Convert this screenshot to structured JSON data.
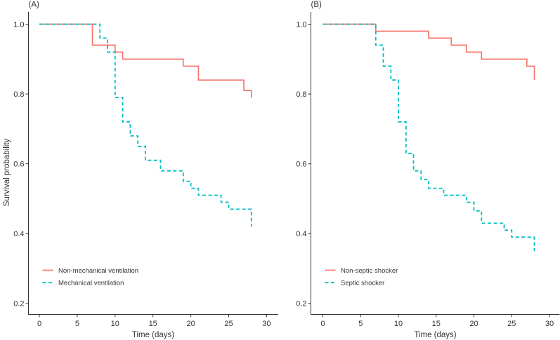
{
  "figure": {
    "ylabel": "Survival probability",
    "background": "#ffffff",
    "text_color": "#333333",
    "axis_color": "#333333"
  },
  "chart_data": [
    {
      "type": "line",
      "subtype": "kaplan-meier-step-curve",
      "panel_label": "(A)",
      "title": "",
      "xlabel": "Time (days)",
      "ylabel": "Survival probability",
      "xlim": [
        0,
        30
      ],
      "xticks": [
        0,
        5,
        10,
        15,
        20,
        25,
        30
      ],
      "ylim": [
        0.15,
        1.03
      ],
      "yticks": [
        "1.0",
        "0.8",
        "0.6",
        "0.4",
        "0.2"
      ],
      "grid": false,
      "legend_position": "bottom-left",
      "series": [
        {
          "name": "Non-mechanical ventilation",
          "color": "#F8766D",
          "line_style": "solid",
          "steps": [
            [
              0,
              1.0
            ],
            [
              7,
              0.94
            ],
            [
              10,
              0.92
            ],
            [
              11,
              0.9
            ],
            [
              19,
              0.88
            ],
            [
              21,
              0.84
            ],
            [
              27,
              0.81
            ],
            [
              28,
              0.79
            ]
          ]
        },
        {
          "name": "Mechanical ventilation",
          "color": "#00BFC4",
          "line_style": "dashed",
          "steps": [
            [
              0,
              1.0
            ],
            [
              8,
              0.96
            ],
            [
              9,
              0.92
            ],
            [
              10,
              0.79
            ],
            [
              11,
              0.72
            ],
            [
              12,
              0.68
            ],
            [
              13,
              0.65
            ],
            [
              14,
              0.61
            ],
            [
              16,
              0.58
            ],
            [
              19,
              0.55
            ],
            [
              20,
              0.53
            ],
            [
              21,
              0.51
            ],
            [
              24,
              0.49
            ],
            [
              25,
              0.47
            ],
            [
              28,
              0.42
            ]
          ]
        }
      ]
    },
    {
      "type": "line",
      "subtype": "kaplan-meier-step-curve",
      "panel_label": "(B)",
      "title": "",
      "xlabel": "Time (days)",
      "ylabel": "Survival probability",
      "xlim": [
        0,
        30
      ],
      "xticks": [
        0,
        5,
        10,
        15,
        20,
        25,
        30
      ],
      "ylim": [
        0.15,
        1.03
      ],
      "yticks": [
        "1.0",
        "0.8",
        "0.6",
        "0.4",
        "0.2"
      ],
      "grid": false,
      "legend_position": "bottom-left",
      "series": [
        {
          "name": "Non-septic shocker",
          "color": "#F8766D",
          "line_style": "solid",
          "steps": [
            [
              0,
              1.0
            ],
            [
              7,
              0.98
            ],
            [
              14,
              0.96
            ],
            [
              17,
              0.94
            ],
            [
              19,
              0.92
            ],
            [
              21,
              0.9
            ],
            [
              27,
              0.88
            ],
            [
              28,
              0.84
            ]
          ]
        },
        {
          "name": "Septic shocker",
          "color": "#00BFC4",
          "line_style": "dashed",
          "steps": [
            [
              0,
              1.0
            ],
            [
              7,
              0.94
            ],
            [
              8,
              0.88
            ],
            [
              9,
              0.84
            ],
            [
              10,
              0.72
            ],
            [
              11,
              0.63
            ],
            [
              12,
              0.58
            ],
            [
              13,
              0.555
            ],
            [
              14,
              0.53
            ],
            [
              16,
              0.51
            ],
            [
              19,
              0.49
            ],
            [
              20,
              0.465
            ],
            [
              21,
              0.43
            ],
            [
              24,
              0.41
            ],
            [
              25,
              0.39
            ],
            [
              28,
              0.35
            ]
          ]
        }
      ]
    }
  ]
}
